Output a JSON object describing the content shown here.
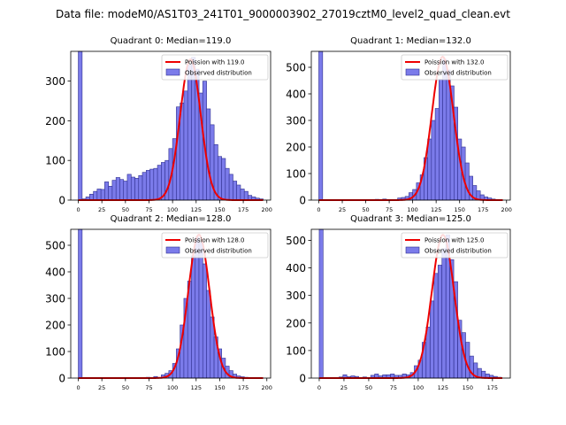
{
  "figure_title": "Data file: modeM0/AS1T03_241T01_9000003902_27019cztM0_level2_quad_clean.evt",
  "colors": {
    "bar_fill": "#7b7bea",
    "bar_edge": "#2f2f8f",
    "poisson": "#ee0000"
  },
  "chart_data": [
    {
      "type": "bar",
      "title": "Quadrant 0: Median=119.0",
      "legend": [
        "Poission with 119.0",
        "Observed distribution"
      ],
      "legend_position": "top-right",
      "median": 119.0,
      "xlim": [
        -8,
        204
      ],
      "ylim": [
        0,
        375
      ],
      "xticks": [
        "0",
        "25",
        "50",
        "75",
        "100",
        "125",
        "150",
        "175",
        "200"
      ],
      "yticks": [
        "0",
        "100",
        "200",
        "300"
      ],
      "bin_width": 4.1,
      "bins_x": [
        0,
        4,
        8,
        12,
        16,
        20,
        24,
        28,
        32,
        36,
        40,
        44,
        48,
        52,
        56,
        60,
        64,
        68,
        72,
        76,
        80,
        84,
        88,
        92,
        96,
        100,
        104,
        108,
        112,
        116,
        120,
        124,
        128,
        132,
        136,
        140,
        144,
        148,
        152,
        156,
        160,
        164,
        168,
        172,
        176,
        180,
        184,
        188,
        192
      ],
      "counts": [
        375,
        3,
        8,
        15,
        22,
        28,
        27,
        46,
        35,
        50,
        57,
        52,
        48,
        65,
        58,
        55,
        62,
        70,
        75,
        78,
        80,
        88,
        95,
        100,
        130,
        155,
        235,
        245,
        275,
        340,
        360,
        330,
        270,
        300,
        230,
        190,
        140,
        110,
        105,
        80,
        65,
        48,
        38,
        28,
        22,
        12,
        8,
        5,
        3
      ],
      "poisson_curve": {
        "mean": 119.0,
        "peak": 355,
        "sigma": 10.9
      }
    },
    {
      "type": "bar",
      "title": "Quadrant 1: Median=132.0",
      "legend": [
        "Poission with 132.0",
        "Observed distribution"
      ],
      "legend_position": "top-right",
      "median": 132.0,
      "xlim": [
        -8,
        204
      ],
      "ylim": [
        0,
        560
      ],
      "xticks": [
        "0",
        "25",
        "50",
        "75",
        "100",
        "125",
        "150",
        "175",
        "200"
      ],
      "yticks": [
        "0",
        "100",
        "200",
        "300",
        "400",
        "500"
      ],
      "bin_width": 4.1,
      "bins_x": [
        0,
        60,
        68,
        84,
        88,
        92,
        96,
        100,
        104,
        108,
        112,
        116,
        120,
        124,
        128,
        132,
        136,
        140,
        144,
        148,
        152,
        156,
        160,
        164,
        168,
        172,
        176,
        180,
        184,
        188
      ],
      "counts": [
        560,
        3,
        4,
        8,
        10,
        14,
        28,
        40,
        65,
        95,
        160,
        230,
        300,
        345,
        455,
        530,
        490,
        430,
        350,
        230,
        200,
        140,
        90,
        55,
        35,
        20,
        12,
        8,
        4,
        2
      ],
      "poisson_curve": {
        "mean": 132.0,
        "peak": 540,
        "sigma": 11.5
      }
    },
    {
      "type": "bar",
      "title": "Quadrant 2: Median=128.0",
      "legend": [
        "Poission with 128.0",
        "Observed distribution"
      ],
      "legend_position": "top-right",
      "median": 128.0,
      "xlim": [
        -8,
        204
      ],
      "ylim": [
        0,
        560
      ],
      "xticks": [
        "0",
        "25",
        "50",
        "75",
        "100",
        "125",
        "150",
        "175",
        "200"
      ],
      "yticks": [
        "0",
        "100",
        "200",
        "300",
        "400",
        "500"
      ],
      "bin_width": 4.1,
      "bins_x": [
        0,
        72,
        80,
        88,
        92,
        96,
        100,
        104,
        108,
        112,
        116,
        120,
        124,
        128,
        132,
        136,
        140,
        144,
        148,
        152,
        156,
        160,
        164,
        168,
        172,
        176
      ],
      "counts": [
        560,
        3,
        6,
        12,
        18,
        28,
        55,
        110,
        200,
        300,
        365,
        460,
        530,
        510,
        430,
        330,
        230,
        155,
        110,
        75,
        45,
        28,
        15,
        8,
        5,
        3
      ],
      "poisson_curve": {
        "mean": 128.0,
        "peak": 540,
        "sigma": 11.3
      }
    },
    {
      "type": "bar",
      "title": "Quadrant 3: Median=125.0",
      "legend": [
        "Poission with 125.0",
        "Observed distribution"
      ],
      "legend_position": "top-right",
      "median": 125.0,
      "xlim": [
        -8,
        193
      ],
      "ylim": [
        0,
        540
      ],
      "xticks": [
        "0",
        "25",
        "50",
        "75",
        "100",
        "125",
        "150",
        "175"
      ],
      "yticks": [
        "0",
        "100",
        "200",
        "300",
        "400",
        "500"
      ],
      "bin_width": 3.9,
      "bins_x": [
        0,
        20,
        24,
        28,
        32,
        36,
        44,
        52,
        56,
        60,
        64,
        68,
        72,
        76,
        80,
        84,
        88,
        92,
        96,
        100,
        104,
        108,
        112,
        116,
        120,
        124,
        128,
        132,
        136,
        140,
        144,
        148,
        152,
        156,
        160,
        164,
        168,
        172,
        176,
        180
      ],
      "counts": [
        540,
        4,
        12,
        5,
        8,
        6,
        4,
        10,
        15,
        8,
        12,
        12,
        15,
        10,
        10,
        15,
        12,
        20,
        45,
        65,
        130,
        185,
        280,
        380,
        410,
        470,
        520,
        430,
        350,
        210,
        165,
        130,
        80,
        55,
        35,
        25,
        15,
        10,
        6,
        3
      ],
      "poisson_curve": {
        "mean": 125.0,
        "peak": 520,
        "sigma": 11.2
      }
    }
  ]
}
